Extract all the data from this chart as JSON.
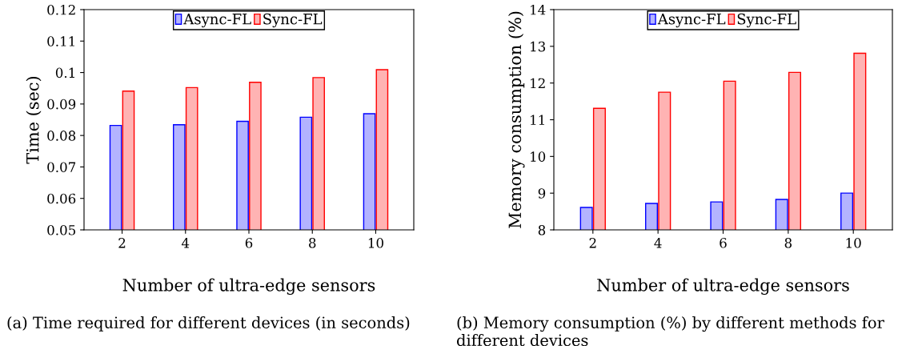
{
  "chart_data": [
    {
      "type": "bar",
      "categories": [
        "2",
        "4",
        "6",
        "8",
        "10"
      ],
      "xlabel": "Number of ultra-edge sensors",
      "ylabel": "Time (sec)",
      "ylim": [
        0.05,
        0.12
      ],
      "yticks": [
        0.05,
        0.06,
        0.07,
        0.08,
        0.09,
        {
          "value": 0.1,
          "label": "0.1"
        },
        0.11,
        0.12
      ],
      "legend": "top",
      "annotations": [
        "(a) Time required for different devices (in seconds)"
      ],
      "series": [
        {
          "name": "Async-FL",
          "color": "#b3b3ff",
          "values": [
            0.0832,
            0.0834,
            0.0845,
            0.0858,
            0.0869
          ]
        },
        {
          "name": "Sync-FL",
          "color": "#ffb3b3",
          "values": [
            0.0941,
            0.0952,
            0.0969,
            0.0984,
            0.1009
          ]
        }
      ]
    },
    {
      "type": "bar",
      "categories": [
        "2",
        "4",
        "6",
        "8",
        "10"
      ],
      "xlabel": "Number of ultra-edge sensors",
      "ylabel": "Memory consumption (%)",
      "ylim": [
        8,
        14
      ],
      "yticks": [
        8,
        9,
        10,
        11,
        12,
        13,
        14
      ],
      "legend": "top",
      "annotations": [
        "(b) Memory consumption (%) by different methods for different devices"
      ],
      "series": [
        {
          "name": "Async-FL",
          "color": "#b3b3ff",
          "values": [
            8.61,
            8.72,
            8.76,
            8.83,
            9.0
          ]
        },
        {
          "name": "Sync-FL",
          "color": "#ffb3b3",
          "values": [
            11.31,
            11.75,
            12.05,
            12.29,
            12.81
          ]
        }
      ]
    }
  ]
}
